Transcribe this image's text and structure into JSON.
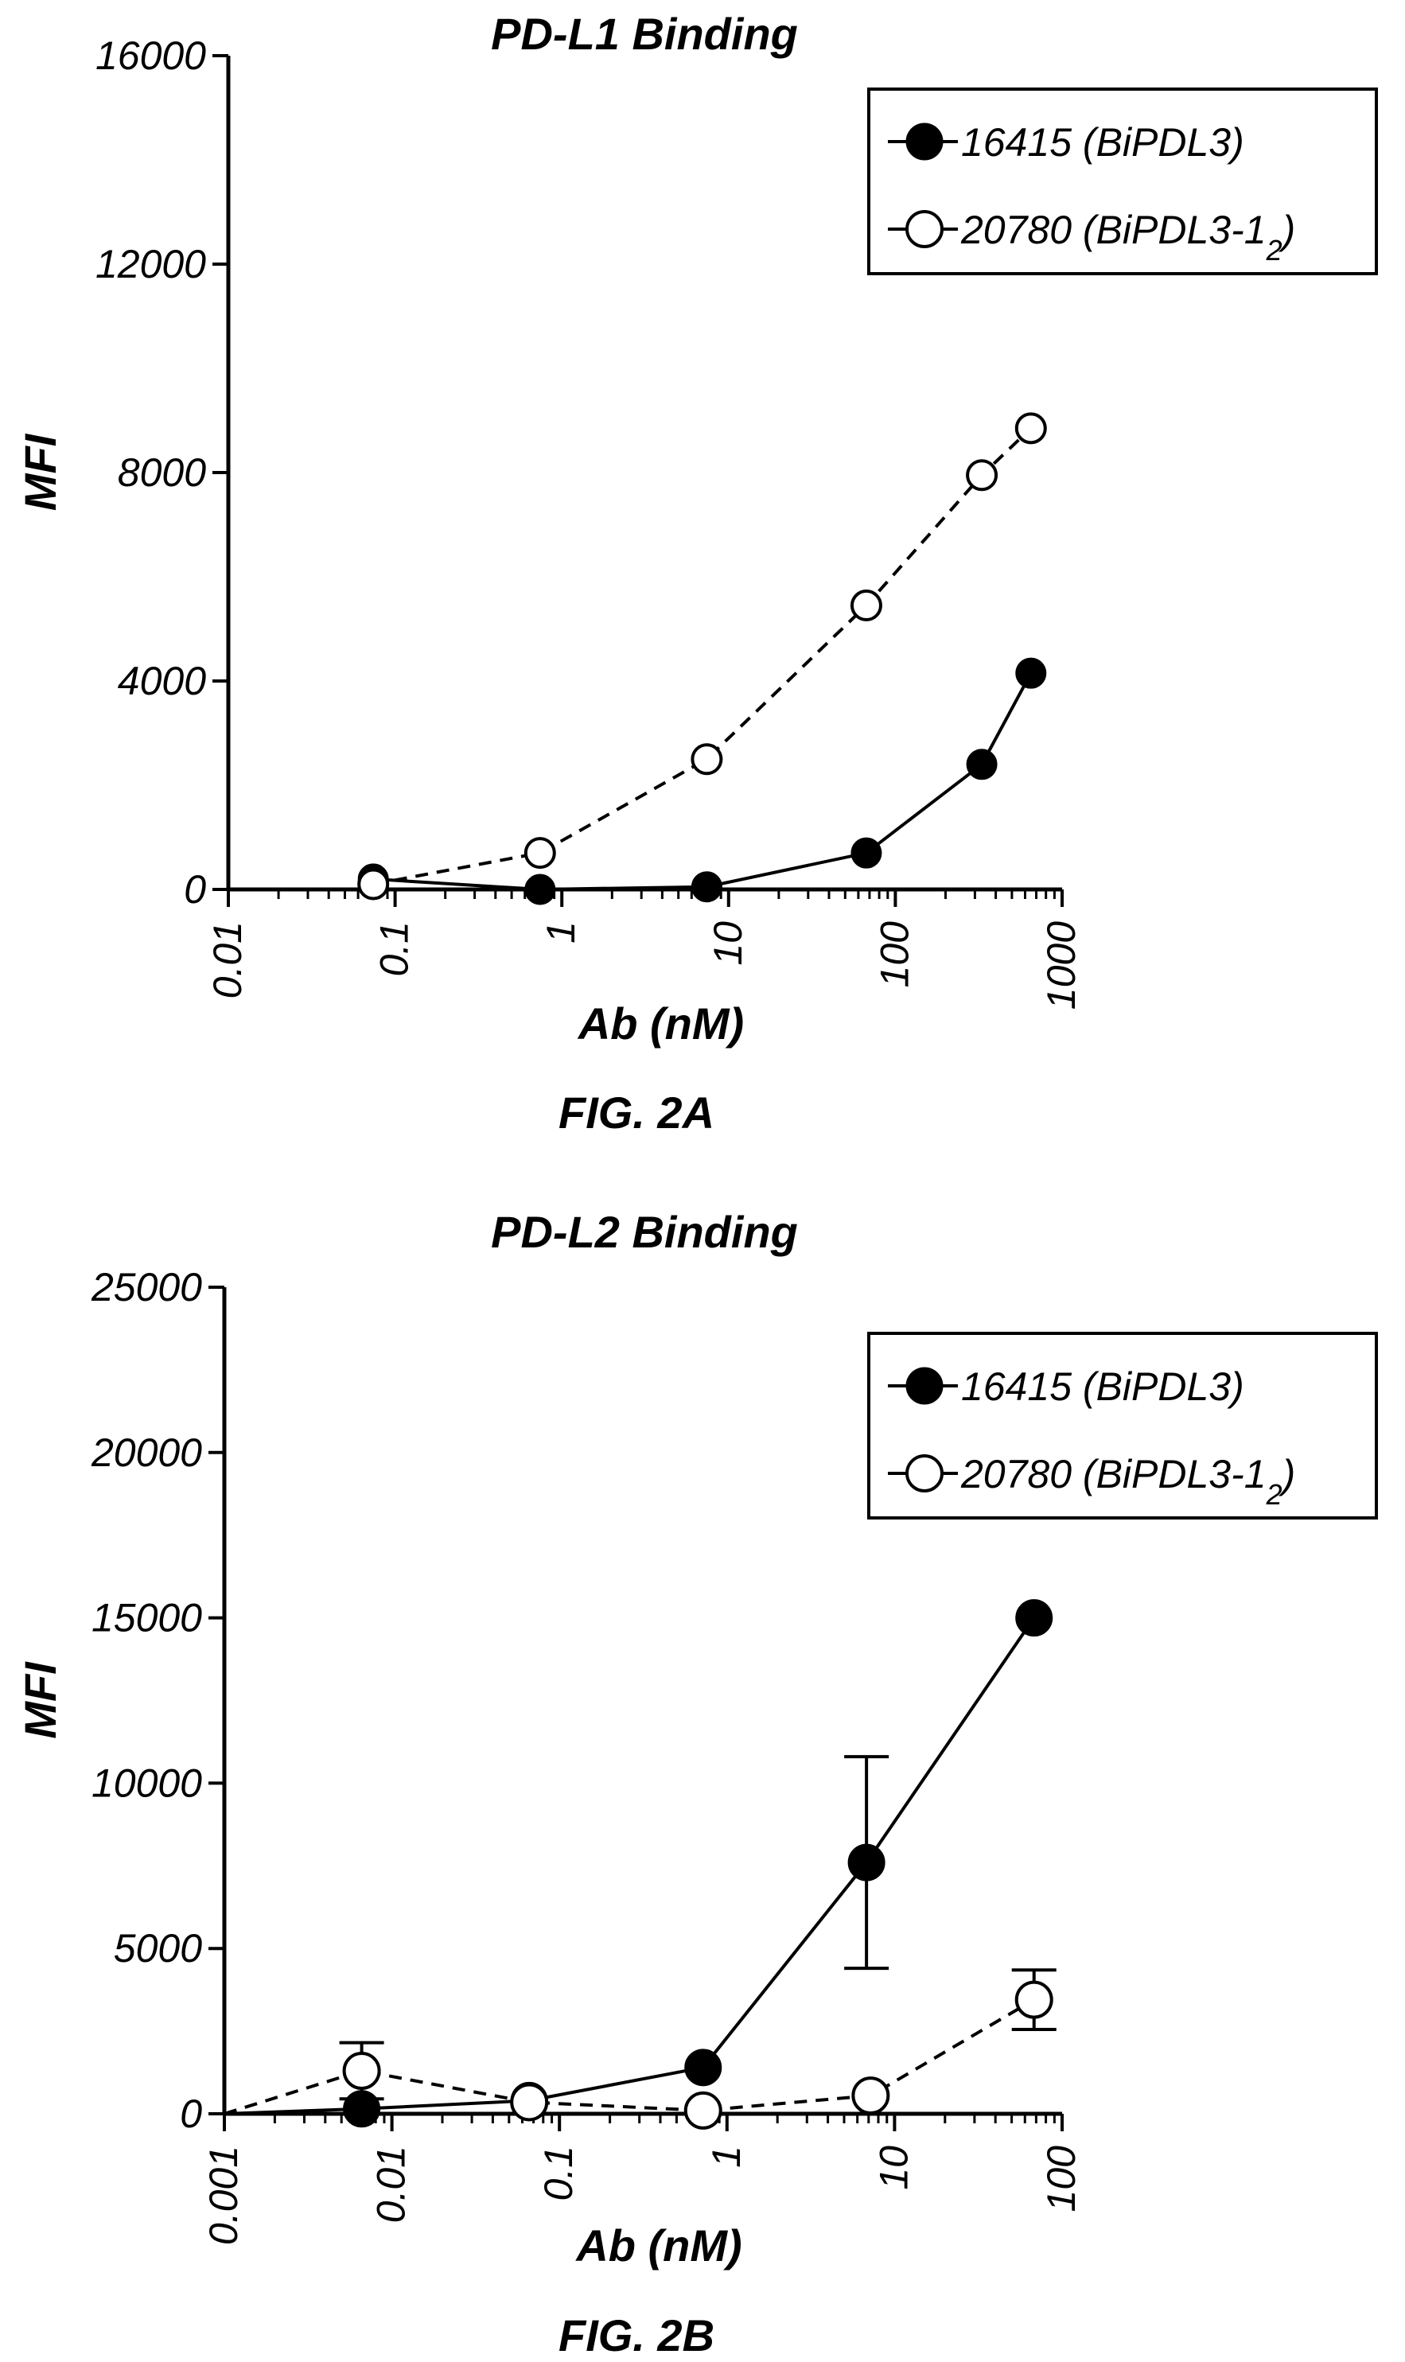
{
  "chart_data": [
    {
      "type": "line",
      "title": "PD-L1 Binding",
      "figure_label": "FIG. 2A",
      "xlabel": "Ab (nM)",
      "ylabel": "MFI",
      "xscale": "log",
      "xlim": [
        0.01,
        1000
      ],
      "ylim": [
        0,
        16000
      ],
      "y_ticks": [
        0,
        4000,
        8000,
        12000,
        16000
      ],
      "x_ticks": [
        0.01,
        0.1,
        1,
        10,
        100,
        1000
      ],
      "y_tick_labels": [
        "0",
        "4000",
        "8000",
        "12000",
        "16000"
      ],
      "x_tick_labels": [
        "0.01",
        "0.1",
        "1",
        "10",
        "100",
        "1000"
      ],
      "legend_position": "top-right",
      "series": [
        {
          "name": "16415 (BiPDL3)",
          "marker": "filled-circle",
          "line": "solid",
          "x": [
            0.074,
            0.74,
            7.4,
            67,
            330,
            650
          ],
          "y": [
            200,
            0,
            50,
            700,
            2400,
            4150
          ]
        },
        {
          "name": "20780 (BiPDL3-1",
          "name_subscript": "2",
          "name_suffix": ")",
          "marker": "open-circle",
          "line": "dashed",
          "x": [
            0.074,
            0.74,
            7.4,
            67,
            330,
            650
          ],
          "y": [
            100,
            700,
            2500,
            5450,
            7950,
            8850
          ]
        }
      ]
    },
    {
      "type": "line",
      "title": "PD-L2 Binding",
      "figure_label": "FIG. 2B",
      "xlabel": "Ab (nM)",
      "ylabel": "MFI",
      "xscale": "log",
      "xlim": [
        0.001,
        100
      ],
      "ylim": [
        0,
        25000
      ],
      "y_ticks": [
        0,
        5000,
        10000,
        15000,
        20000,
        25000
      ],
      "x_ticks": [
        0.001,
        0.01,
        0.1,
        1,
        10,
        100
      ],
      "y_tick_labels": [
        "0",
        "5000",
        "10000",
        "15000",
        "20000",
        "25000"
      ],
      "x_tick_labels": [
        "0.001",
        "0.01",
        "0.1",
        "1",
        "10",
        "100"
      ],
      "legend_position": "top-right",
      "series": [
        {
          "name": "16415 (BiPDL3)",
          "marker": "filled-circle",
          "line": "solid",
          "x": [
            0.0001,
            0.0066,
            0.066,
            0.72,
            6.8,
            68
          ],
          "y": [
            0,
            150,
            400,
            1400,
            7600,
            15000
          ],
          "error": [
            0,
            0,
            0,
            0,
            3200,
            0
          ]
        },
        {
          "name": "20780 (BiPDL3-1",
          "name_subscript": "2",
          "name_suffix": ")",
          "marker": "open-circle",
          "line": "dashed",
          "x": [
            0.0001,
            0.0066,
            0.066,
            0.72,
            7.2,
            68
          ],
          "y": [
            0,
            1300,
            350,
            100,
            550,
            3450
          ],
          "error": [
            0,
            850,
            0,
            0,
            0,
            900
          ]
        }
      ]
    }
  ]
}
